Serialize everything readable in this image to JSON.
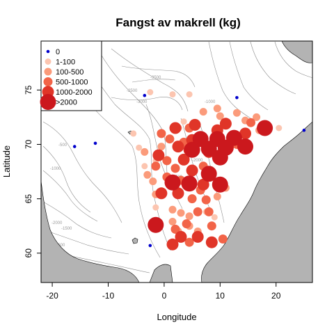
{
  "chart_data": {
    "type": "scatter",
    "title": "Fangst av makrell (kg)",
    "xlabel": "Longitude",
    "ylabel": "Latitude",
    "xlim": [
      -22,
      26.5
    ],
    "ylim": [
      57.3,
      79.5
    ],
    "xticks": [
      "-20",
      "-10",
      "0",
      "10",
      "20"
    ],
    "xtick_values": [
      -20,
      -10,
      0,
      10,
      20
    ],
    "yticks": [
      "60",
      "65",
      "70",
      "75"
    ],
    "ytick_values": [
      60,
      65,
      70,
      75
    ],
    "grid": false,
    "legend_position": "top-left",
    "legend": [
      {
        "label": "0",
        "color": "#0000cc",
        "size": 1
      },
      {
        "label": "1-100",
        "color": "#fcc5b0",
        "size": 2
      },
      {
        "label": "100-500",
        "color": "#fb9b7b",
        "size": 3
      },
      {
        "label": "500-1000",
        "color": "#f26448",
        "size": 4
      },
      {
        "label": "1000-2000",
        "color": "#e03528",
        "size": 5
      },
      {
        "label": ">2000",
        "color": "#cb181d",
        "size": 6
      }
    ],
    "contour_labels": [
      "-3500",
      "-3000",
      "-2500",
      "-1000",
      "-500",
      "-2000",
      "-1500",
      "-2000",
      "-500",
      "-1000",
      "-2500"
    ],
    "points": [
      {
        "lon": -16,
        "lat": 69.8,
        "cat": 0
      },
      {
        "lon": -12.3,
        "lat": 70.1,
        "cat": 0
      },
      {
        "lon": -3.5,
        "lat": 74.5,
        "cat": 0
      },
      {
        "lon": 13.0,
        "lat": 74.3,
        "cat": 0
      },
      {
        "lon": 25.0,
        "lat": 71.3,
        "cat": 0
      },
      {
        "lon": -2.5,
        "lat": 60.7,
        "cat": 0
      },
      {
        "lon": -2.5,
        "lat": 74.8,
        "cat": 1
      },
      {
        "lon": 1.5,
        "lat": 74.6,
        "cat": 1
      },
      {
        "lon": 4.5,
        "lat": 74.6,
        "cat": 1
      },
      {
        "lon": -5.5,
        "lat": 71.0,
        "cat": 1
      },
      {
        "lon": -4.5,
        "lat": 69.7,
        "cat": 1
      },
      {
        "lon": -3.5,
        "lat": 68.0,
        "cat": 1
      },
      {
        "lon": -1.5,
        "lat": 68.5,
        "cat": 1
      },
      {
        "lon": 20.5,
        "lat": 71.5,
        "cat": 1
      },
      {
        "lon": 3.5,
        "lat": 72.1,
        "cat": 1
      },
      {
        "lon": 7.5,
        "lat": 63.8,
        "cat": 1
      },
      {
        "lon": 9.0,
        "lat": 63.3,
        "cat": 1
      },
      {
        "lon": -1.5,
        "lat": 64.2,
        "cat": 1
      },
      {
        "lon": 7.0,
        "lat": 73.0,
        "cat": 2
      },
      {
        "lon": 9.5,
        "lat": 73.3,
        "cat": 2
      },
      {
        "lon": 10.0,
        "lat": 72.6,
        "cat": 2
      },
      {
        "lon": 13.0,
        "lat": 72.9,
        "cat": 2
      },
      {
        "lon": 2.5,
        "lat": 71.5,
        "cat": 2
      },
      {
        "lon": 14.5,
        "lat": 72.2,
        "cat": 2
      },
      {
        "lon": 16.5,
        "lat": 72.5,
        "cat": 2
      },
      {
        "lon": -0.5,
        "lat": 69.8,
        "cat": 2
      },
      {
        "lon": -3.5,
        "lat": 69.3,
        "cat": 2
      },
      {
        "lon": -3.0,
        "lat": 67.2,
        "cat": 2
      },
      {
        "lon": -2.0,
        "lat": 66.6,
        "cat": 2
      },
      {
        "lon": -1.5,
        "lat": 65.4,
        "cat": 2
      },
      {
        "lon": 1.5,
        "lat": 64.0,
        "cat": 2
      },
      {
        "lon": 3.0,
        "lat": 63.7,
        "cat": 2
      },
      {
        "lon": 4.5,
        "lat": 63.4,
        "cat": 2
      },
      {
        "lon": 1.5,
        "lat": 62.9,
        "cat": 2
      },
      {
        "lon": 2.5,
        "lat": 62.0,
        "cat": 2
      },
      {
        "lon": 4.5,
        "lat": 62.5,
        "cat": 2
      },
      {
        "lon": 6.0,
        "lat": 62.0,
        "cat": 2
      },
      {
        "lon": 9.5,
        "lat": 65.2,
        "cat": 2
      },
      {
        "lon": 11.0,
        "lat": 66.0,
        "cat": 2
      },
      {
        "lon": 17.0,
        "lat": 71.3,
        "cat": 2
      },
      {
        "lon": -0.5,
        "lat": 71.0,
        "cat": 3
      },
      {
        "lon": 0.5,
        "lat": 68.5,
        "cat": 3
      },
      {
        "lon": -1.5,
        "lat": 68.0,
        "cat": 3
      },
      {
        "lon": 2.0,
        "lat": 67.8,
        "cat": 3
      },
      {
        "lon": 0.5,
        "lat": 67.0,
        "cat": 3
      },
      {
        "lon": 3.0,
        "lat": 66.7,
        "cat": 3
      },
      {
        "lon": 6.5,
        "lat": 65.8,
        "cat": 3
      },
      {
        "lon": 5.0,
        "lat": 65.0,
        "cat": 3
      },
      {
        "lon": 7.5,
        "lat": 64.9,
        "cat": 3
      },
      {
        "lon": 8.0,
        "lat": 63.8,
        "cat": 3
      },
      {
        "lon": 6.0,
        "lat": 63.8,
        "cat": 3
      },
      {
        "lon": 4.0,
        "lat": 62.7,
        "cat": 3
      },
      {
        "lon": 2.0,
        "lat": 62.2,
        "cat": 3
      },
      {
        "lon": 8.5,
        "lat": 62.5,
        "cat": 3
      },
      {
        "lon": 10.5,
        "lat": 61.3,
        "cat": 3
      },
      {
        "lon": 4.5,
        "lat": 61.0,
        "cat": 3
      },
      {
        "lon": 3.5,
        "lat": 70.2,
        "cat": 3
      },
      {
        "lon": 4.5,
        "lat": 71.5,
        "cat": 3
      },
      {
        "lon": 13.0,
        "lat": 70.0,
        "cat": 3
      },
      {
        "lon": 15.5,
        "lat": 72.0,
        "cat": 3
      },
      {
        "lon": 1.0,
        "lat": 70.5,
        "cat": 3
      },
      {
        "lon": 7.0,
        "lat": 68.0,
        "cat": 3
      },
      {
        "lon": 2.0,
        "lat": 71.5,
        "cat": 4
      },
      {
        "lon": 2.5,
        "lat": 69.8,
        "cat": 4
      },
      {
        "lon": -1.0,
        "lat": 69.0,
        "cat": 4
      },
      {
        "lon": 3.5,
        "lat": 68.6,
        "cat": 4
      },
      {
        "lon": 5.0,
        "lat": 67.6,
        "cat": 4
      },
      {
        "lon": -0.5,
        "lat": 65.5,
        "cat": 4
      },
      {
        "lon": 2.5,
        "lat": 65.5,
        "cat": 4
      },
      {
        "lon": 7.0,
        "lat": 66.3,
        "cat": 4
      },
      {
        "lon": 1.5,
        "lat": 60.8,
        "cat": 4
      },
      {
        "lon": 3.0,
        "lat": 61.5,
        "cat": 4
      },
      {
        "lon": 6.0,
        "lat": 61.5,
        "cat": 4
      },
      {
        "lon": 8.5,
        "lat": 61.0,
        "cat": 4
      },
      {
        "lon": 4.5,
        "lat": 69.5,
        "cat": 4
      },
      {
        "lon": 5.5,
        "lat": 71.8,
        "cat": 4
      },
      {
        "lon": 9.5,
        "lat": 71.3,
        "cat": 4
      },
      {
        "lon": 11.0,
        "lat": 71.9,
        "cat": 4
      },
      {
        "lon": 14.5,
        "lat": 71.0,
        "cat": 4
      },
      {
        "lon": 5.0,
        "lat": 70.4,
        "cat": 4
      },
      {
        "lon": 8.0,
        "lat": 69.3,
        "cat": 4
      },
      {
        "lon": 6.5,
        "lat": 70.5,
        "cat": 5
      },
      {
        "lon": 9.5,
        "lat": 70.5,
        "cat": 5
      },
      {
        "lon": 12.5,
        "lat": 70.6,
        "cat": 5
      },
      {
        "lon": 8.0,
        "lat": 69.6,
        "cat": 5
      },
      {
        "lon": 11.0,
        "lat": 69.7,
        "cat": 5
      },
      {
        "lon": 14.5,
        "lat": 69.8,
        "cat": 5
      },
      {
        "lon": 5.0,
        "lat": 69.5,
        "cat": 5
      },
      {
        "lon": 10.0,
        "lat": 68.8,
        "cat": 5
      },
      {
        "lon": 8.0,
        "lat": 67.3,
        "cat": 5
      },
      {
        "lon": 1.5,
        "lat": 66.5,
        "cat": 5
      },
      {
        "lon": 4.5,
        "lat": 66.4,
        "cat": 5
      },
      {
        "lon": 10.0,
        "lat": 66.3,
        "cat": 5
      },
      {
        "lon": -1.5,
        "lat": 62.6,
        "cat": 5
      },
      {
        "lon": 18.0,
        "lat": 71.5,
        "cat": 5
      }
    ]
  }
}
